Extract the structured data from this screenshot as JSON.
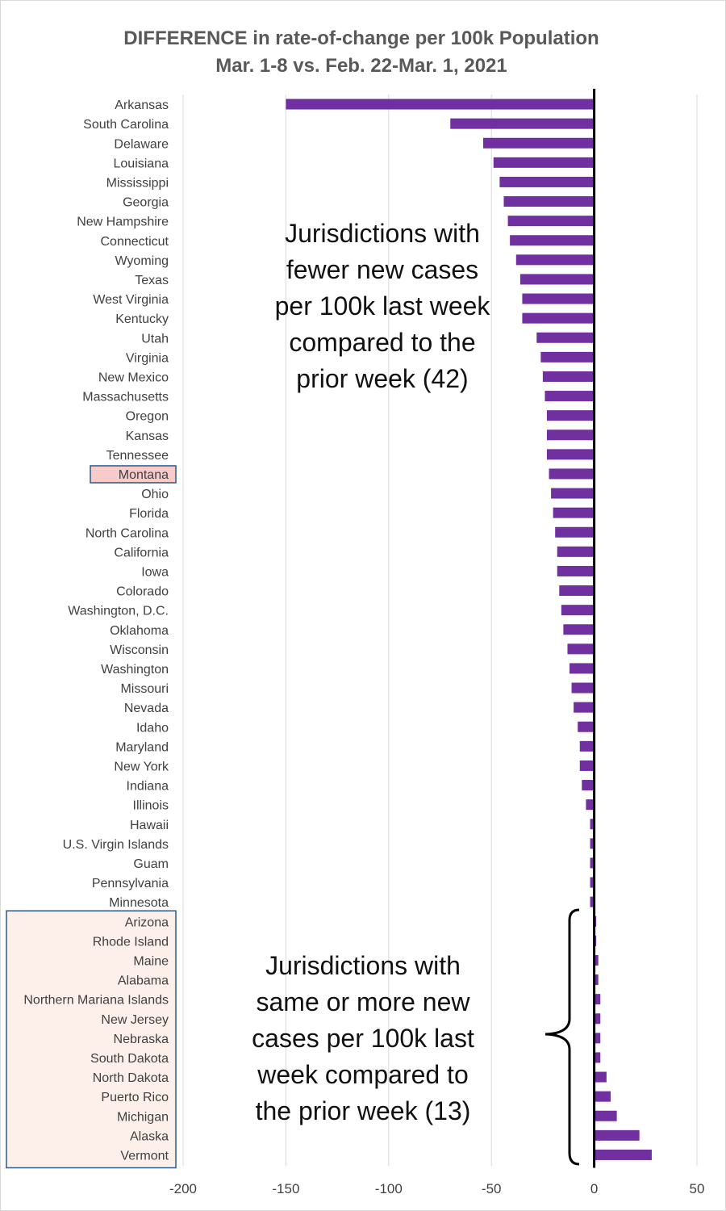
{
  "chart_data": {
    "type": "bar",
    "orientation": "horizontal",
    "title": [
      "DIFFERENCE in rate-of-change per 100k Population",
      "Mar. 1-8 vs. Feb. 22-Mar. 1, 2021"
    ],
    "xlim": [
      -200,
      50
    ],
    "xticks": [
      -200,
      -150,
      -100,
      -50,
      0,
      50
    ],
    "xtick_labels": [
      "-200",
      "-150",
      "-100",
      "-50",
      "0",
      "50"
    ],
    "grid": true,
    "bar_color": "#7030a0",
    "highlight_color": "#f8cbcb",
    "group_box_color": "#fdf0ea",
    "box_border_color": "#2e5a88",
    "highlighted_category": "Montana",
    "categories": [
      "Arkansas",
      "South Carolina",
      "Delaware",
      "Louisiana",
      "Mississippi",
      "Georgia",
      "New Hampshire",
      "Connecticut",
      "Wyoming",
      "Texas",
      "West Virginia",
      "Kentucky",
      "Utah",
      "Virginia",
      "New Mexico",
      "Massachusetts",
      "Oregon",
      "Kansas",
      "Tennessee",
      "Montana",
      "Ohio",
      "Florida",
      "North Carolina",
      "California",
      "Iowa",
      "Colorado",
      "Washington, D.C.",
      "Oklahoma",
      "Wisconsin",
      "Washington",
      "Missouri",
      "Nevada",
      "Idaho",
      "Maryland",
      "New York",
      "Indiana",
      "Illinois",
      "Hawaii",
      "U.S. Virgin Islands",
      "Guam",
      "Pennsylvania",
      "Minnesota",
      "Arizona",
      "Rhode Island",
      "Maine",
      "Alabama",
      "Northern Mariana Islands",
      "New Jersey",
      "Nebraska",
      "South Dakota",
      "North Dakota",
      "Puerto Rico",
      "Michigan",
      "Alaska",
      "Vermont"
    ],
    "values": [
      -150,
      -70,
      -54,
      -49,
      -46,
      -44,
      -42,
      -41,
      -38,
      -36,
      -35,
      -35,
      -28,
      -26,
      -25,
      -24,
      -23,
      -23,
      -23,
      -22,
      -21,
      -20,
      -19,
      -18,
      -18,
      -17,
      -16,
      -15,
      -13,
      -12,
      -11,
      -10,
      -8,
      -7,
      -7,
      -6,
      -4,
      -2,
      -2,
      -2,
      -2,
      -2,
      1,
      1,
      2,
      2,
      3,
      3,
      3,
      3,
      6,
      8,
      11,
      22,
      28
    ],
    "annotations": [
      {
        "lines": [
          "Jurisdictions with",
          "fewer new cases",
          "per 100k last week",
          "compared to the",
          "prior week (42)"
        ]
      },
      {
        "lines": [
          "Jurisdictions with",
          "same or more new",
          "cases per 100k last",
          "week compared to",
          "the prior week (13)"
        ]
      }
    ]
  }
}
